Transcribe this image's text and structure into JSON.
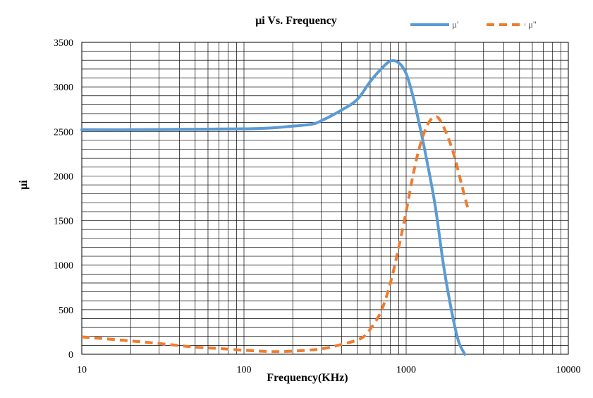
{
  "chart_data": {
    "type": "line",
    "title": "μi Vs. Frequency",
    "xlabel": "Frequency(KHz)",
    "ylabel": "μi",
    "x_scale": "log",
    "xlim": [
      10,
      10000
    ],
    "ylim": [
      0,
      3500
    ],
    "x_ticks": [
      "10",
      "100",
      "1000",
      "10000"
    ],
    "y_ticks": [
      "0",
      "500",
      "1000",
      "1500",
      "2000",
      "2500",
      "3000",
      "3500"
    ],
    "grid": true,
    "legend_position": "top-right",
    "series": [
      {
        "name": "μ'",
        "color": "#5B9BD5",
        "style": "solid",
        "points": [
          [
            10,
            2520
          ],
          [
            20,
            2520
          ],
          [
            50,
            2525
          ],
          [
            100,
            2530
          ],
          [
            150,
            2540
          ],
          [
            200,
            2560
          ],
          [
            260,
            2580
          ],
          [
            300,
            2620
          ],
          [
            400,
            2740
          ],
          [
            500,
            2860
          ],
          [
            600,
            3060
          ],
          [
            700,
            3200
          ],
          [
            800,
            3290
          ],
          [
            900,
            3270
          ],
          [
            1000,
            3150
          ],
          [
            1100,
            2900
          ],
          [
            1200,
            2600
          ],
          [
            1300,
            2300
          ],
          [
            1500,
            1700
          ],
          [
            1700,
            1000
          ],
          [
            1900,
            500
          ],
          [
            2100,
            150
          ],
          [
            2300,
            0
          ]
        ]
      },
      {
        "name": "μ''",
        "color": "#ED7D31",
        "style": "dashed",
        "points": [
          [
            10,
            195
          ],
          [
            20,
            150
          ],
          [
            30,
            120
          ],
          [
            50,
            80
          ],
          [
            70,
            65
          ],
          [
            100,
            45
          ],
          [
            150,
            30
          ],
          [
            200,
            35
          ],
          [
            300,
            60
          ],
          [
            400,
            110
          ],
          [
            500,
            160
          ],
          [
            550,
            200
          ],
          [
            600,
            280
          ],
          [
            700,
            480
          ],
          [
            800,
            800
          ],
          [
            900,
            1200
          ],
          [
            1000,
            1600
          ],
          [
            1100,
            2000
          ],
          [
            1200,
            2300
          ],
          [
            1300,
            2500
          ],
          [
            1400,
            2620
          ],
          [
            1500,
            2660
          ],
          [
            1600,
            2640
          ],
          [
            1800,
            2450
          ],
          [
            2000,
            2200
          ],
          [
            2200,
            1900
          ],
          [
            2400,
            1640
          ]
        ]
      }
    ]
  }
}
